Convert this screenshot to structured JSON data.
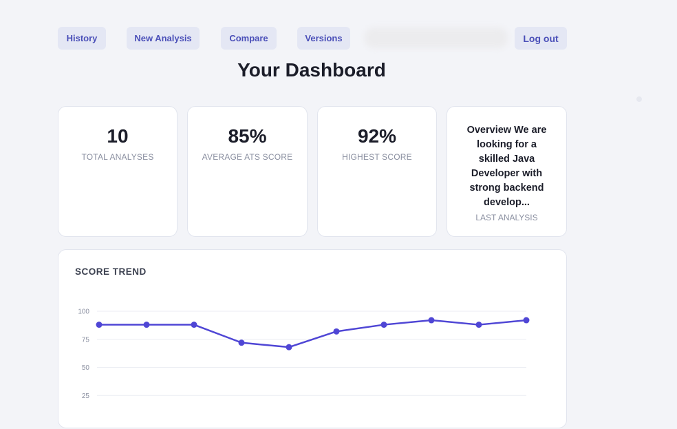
{
  "nav": {
    "history": "History",
    "new_analysis": "New Analysis",
    "compare": "Compare",
    "versions": "Versions",
    "logout": "Log out"
  },
  "page": {
    "title": "Your Dashboard"
  },
  "stats": {
    "total_analyses": {
      "value": "10",
      "label": "TOTAL ANALYSES"
    },
    "average_score": {
      "value": "85%",
      "label": "AVERAGE ATS SCORE"
    },
    "highest_score": {
      "value": "92%",
      "label": "HIGHEST SCORE"
    },
    "last_analysis": {
      "text": "Overview We are looking for a skilled Java Developer with strong backend develop...",
      "label": "LAST ANALYSIS"
    }
  },
  "chart": {
    "title": "SCORE TREND"
  },
  "colors": {
    "accent": "#4f46d5",
    "nav_bg": "#e4e7f4",
    "nav_text": "#4a4fb8"
  },
  "chart_data": {
    "type": "line",
    "title": "SCORE TREND",
    "x": [
      1,
      2,
      3,
      4,
      5,
      6,
      7,
      8,
      9,
      10
    ],
    "series": [
      {
        "values": [
          88,
          88,
          88,
          72,
          68,
          82,
          88,
          92,
          88,
          92
        ]
      }
    ],
    "yticks": [
      25,
      50,
      75,
      100
    ],
    "ylim": [
      0,
      100
    ],
    "grid": true,
    "xlabel": "",
    "ylabel": ""
  }
}
